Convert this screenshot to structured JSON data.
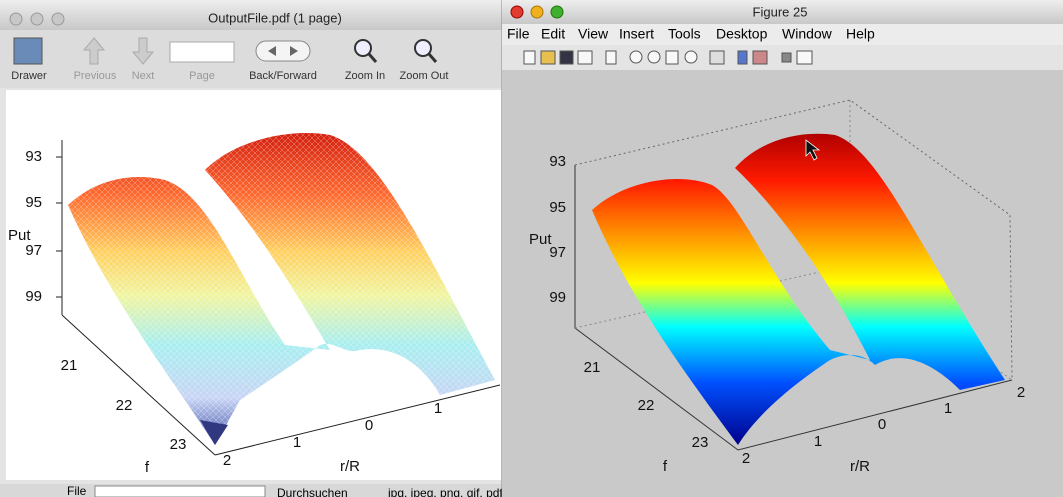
{
  "preview_window": {
    "title": "OutputFile.pdf (1 page)",
    "toolbar": [
      "Drawer",
      "Previous",
      "Next",
      "Page",
      "Back/Forward",
      "Zoom In",
      "Zoom Out"
    ],
    "plot": {
      "z_ticks": [
        "93",
        "95",
        "97",
        "99"
      ],
      "z_label": "Put",
      "y_ticks": [
        "21",
        "22",
        "23"
      ],
      "y_label": "f",
      "x_ticks": [
        "2",
        "1",
        "0",
        "1"
      ],
      "x_label": "r/R"
    }
  },
  "figure_window": {
    "title": "Figure 25",
    "menu": [
      "File",
      "Edit",
      "View",
      "Insert",
      "Tools",
      "Desktop",
      "Window",
      "Help"
    ],
    "plot": {
      "z_ticks": [
        "93",
        "95",
        "97",
        "99"
      ],
      "z_label": "Put",
      "y_ticks": [
        "21",
        "22",
        "23"
      ],
      "y_label": "f",
      "x_ticks": [
        "2",
        "1",
        "0",
        "1",
        "2"
      ],
      "x_label": "r/R"
    }
  },
  "upload_bar": {
    "label": "File",
    "button": "Durchsuchen",
    "hint": "jpg, jpeg, png, gif, pdf, doc, ppt only"
  }
}
